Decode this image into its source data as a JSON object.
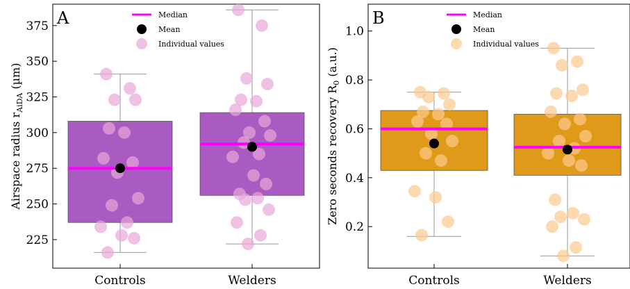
{
  "chart_data": [
    {
      "type": "box",
      "panel_label": "A",
      "ylabel": "Airspace radius r",
      "ylabel_subscript": "AiDA",
      "ylabel_unit": "(µm)",
      "ylim": [
        205,
        390
      ],
      "yticks": [
        "225",
        "250",
        "275",
        "300",
        "325",
        "350",
        "375"
      ],
      "categories": [
        "Controls",
        "Welders"
      ],
      "box_color": "#a95bc1",
      "point_color": "#e8a6d8",
      "median_color": "#ff00ff",
      "mean_color": "#000000",
      "legend": {
        "position": "top-center",
        "entries": [
          "Median",
          "Mean",
          "Individual values"
        ]
      },
      "boxes": [
        {
          "category": "Controls",
          "whisker_low": 216,
          "q1": 237,
          "median": 275,
          "q3": 308,
          "whisker_high": 341,
          "mean": 275
        },
        {
          "category": "Welders",
          "whisker_low": 222,
          "q1": 256,
          "median": 292,
          "q3": 314,
          "whisker_high": 386,
          "mean": 290
        }
      ],
      "points": [
        {
          "category": "Controls",
          "values": [
            341,
            331,
            323,
            323,
            303,
            300,
            282,
            279,
            272,
            254,
            249,
            237,
            234,
            228,
            226,
            216
          ]
        },
        {
          "category": "Welders",
          "values": [
            386,
            375,
            338,
            334,
            323,
            322,
            316,
            308,
            300,
            298,
            293,
            285,
            283,
            270,
            264,
            257,
            254,
            253,
            246,
            237,
            228,
            222
          ]
        }
      ]
    },
    {
      "type": "box",
      "panel_label": "B",
      "ylabel": "Zero seconds recovery R",
      "ylabel_subscript": "0",
      "ylabel_unit": "(a.u.)",
      "ylim": [
        0.03,
        1.11
      ],
      "yticks": [
        "0.2",
        "0.4",
        "0.6",
        "0.8",
        "1.0"
      ],
      "categories": [
        "Controls",
        "Welders"
      ],
      "box_color": "#e09a1a",
      "point_color": "#fcc98f",
      "median_color": "#ff00ff",
      "mean_color": "#000000",
      "legend": {
        "position": "top-center",
        "entries": [
          "Median",
          "Mean",
          "Individual values"
        ]
      },
      "boxes": [
        {
          "category": "Controls",
          "whisker_low": 0.16,
          "q1": 0.43,
          "median": 0.6,
          "q3": 0.675,
          "whisker_high": 0.75,
          "mean": 0.54
        },
        {
          "category": "Welders",
          "whisker_low": 0.08,
          "q1": 0.41,
          "median": 0.525,
          "q3": 0.66,
          "whisker_high": 0.93,
          "mean": 0.515
        }
      ],
      "points": [
        {
          "category": "Controls",
          "values": [
            0.75,
            0.745,
            0.73,
            0.7,
            0.67,
            0.66,
            0.63,
            0.62,
            0.58,
            0.55,
            0.5,
            0.47,
            0.345,
            0.32,
            0.22,
            0.165
          ]
        },
        {
          "category": "Welders",
          "values": [
            0.93,
            0.875,
            0.86,
            0.76,
            0.745,
            0.735,
            0.67,
            0.64,
            0.62,
            0.57,
            0.55,
            0.52,
            0.5,
            0.47,
            0.45,
            0.31,
            0.255,
            0.24,
            0.23,
            0.2,
            0.115,
            0.08
          ]
        }
      ]
    }
  ]
}
